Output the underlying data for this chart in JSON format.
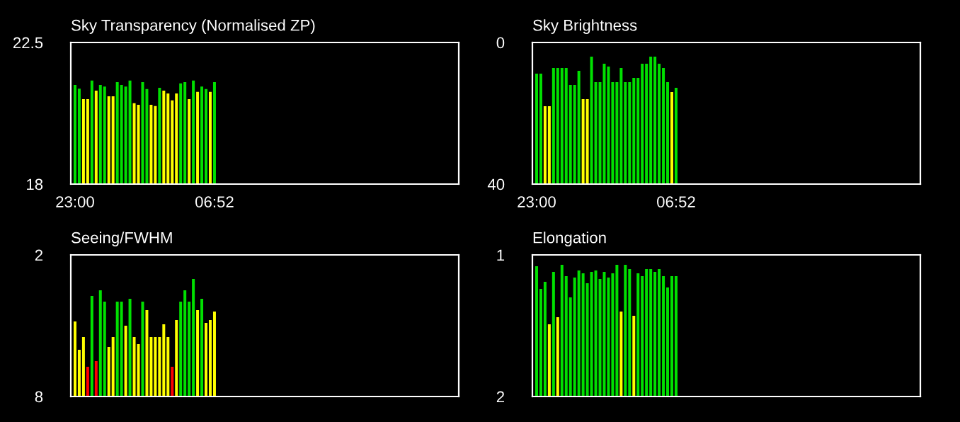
{
  "chart_data": [
    {
      "type": "bar",
      "title": "Sky Transparency (Normalised ZP)",
      "categories": [
        "23:00",
        null,
        null,
        null,
        null,
        null,
        null,
        null,
        null,
        null,
        null,
        null,
        null,
        null,
        null,
        null,
        null,
        null,
        null,
        null,
        null,
        null,
        null,
        null,
        null,
        null,
        null,
        null,
        null,
        null,
        null,
        null,
        null,
        "06:52"
      ],
      "values": [
        21.15,
        21.03,
        20.7,
        20.7,
        21.29,
        20.97,
        21.15,
        21.1,
        20.79,
        20.79,
        21.24,
        21.15,
        21.1,
        21.29,
        20.57,
        20.52,
        21.24,
        21.02,
        20.52,
        20.48,
        21.06,
        20.97,
        20.88,
        20.66,
        20.88,
        21.2,
        21.24,
        20.7,
        21.29,
        20.93,
        21.1,
        21.02,
        20.93,
        21.24
      ],
      "colors": [
        "#00e000",
        "#00e000",
        "#ffff00",
        "#ffff00",
        "#00e000",
        "#ffff00",
        "#00e000",
        "#00e000",
        "#ffff00",
        "#ffff00",
        "#00e000",
        "#00e000",
        "#00e000",
        "#00e000",
        "#ffff00",
        "#ffff00",
        "#00e000",
        "#00e000",
        "#ffff00",
        "#ffff00",
        "#00e000",
        "#ffff00",
        "#ffff00",
        "#ffff00",
        "#ffff00",
        "#00e000",
        "#00e000",
        "#ffff00",
        "#00e000",
        "#ffff00",
        "#00e000",
        "#00e000",
        "#ffff00",
        "#00e000"
      ],
      "ylim": [
        18,
        22.5
      ],
      "yticks": [
        18,
        22.5
      ]
    },
    {
      "type": "bar",
      "title": "Sky Brightness",
      "categories": [
        "23:00",
        null,
        null,
        null,
        null,
        null,
        null,
        null,
        null,
        null,
        null,
        null,
        null,
        null,
        null,
        null,
        null,
        null,
        null,
        null,
        null,
        null,
        null,
        null,
        null,
        null,
        null,
        null,
        null,
        null,
        null,
        null,
        null,
        "06:52"
      ],
      "base": [
        40,
        40,
        40,
        40,
        40,
        40,
        40,
        40,
        40,
        40,
        40,
        40,
        40,
        40,
        40,
        40,
        40,
        40,
        40,
        40,
        40,
        40,
        40,
        40,
        40,
        40,
        40,
        40,
        40,
        40,
        40,
        40,
        40,
        40
      ],
      "values": [
        -31.2,
        -31.2,
        -22,
        -22,
        -32.8,
        -32.8,
        -32.8,
        -32.8,
        -28,
        -28,
        -32,
        -24,
        -24,
        -36,
        -28.8,
        -28.8,
        -34,
        -33.2,
        -28.8,
        -28.8,
        -32.8,
        -28.8,
        -28.8,
        -30,
        -30,
        -34,
        -34,
        -36,
        -36,
        -34,
        -32.8,
        -28.8,
        -26,
        -27.2
      ],
      "colors": [
        "#00e000",
        "#00e000",
        "#ffff00",
        "#ffff00",
        "#00e000",
        "#00e000",
        "#00e000",
        "#00e000",
        "#00e000",
        "#00e000",
        "#00e000",
        "#ffff00",
        "#ffff00",
        "#00e000",
        "#00e000",
        "#00e000",
        "#00e000",
        "#00e000",
        "#00e000",
        "#00e000",
        "#00e000",
        "#00e000",
        "#00e000",
        "#00e000",
        "#00e000",
        "#00e000",
        "#00e000",
        "#00e000",
        "#00e000",
        "#00e000",
        "#00e000",
        "#00e000",
        "#ffff00",
        "#00e000"
      ],
      "ylim": [
        40,
        0
      ],
      "yticks": [
        40,
        0
      ]
    },
    {
      "type": "bar",
      "title": "Seeing/FWHM",
      "categories": [
        null,
        null,
        null,
        null,
        null,
        null,
        null,
        null,
        null,
        null,
        null,
        null,
        null,
        null,
        null,
        null,
        null,
        null,
        null,
        null,
        null,
        null,
        null,
        null,
        null,
        null,
        null,
        null,
        null,
        null,
        null,
        null,
        null,
        null
      ],
      "base": [
        8,
        8,
        8,
        8,
        8,
        8,
        8,
        8,
        8,
        8,
        8,
        8,
        8,
        8,
        8,
        8,
        8,
        8,
        8,
        8,
        8,
        8,
        8,
        8,
        8,
        8,
        8,
        8,
        8,
        8,
        8,
        8,
        8,
        8
      ],
      "values": [
        -3.18,
        -1.98,
        -2.52,
        -1.26,
        -4.26,
        -1.5,
        -4.5,
        -4.02,
        -2.1,
        -2.52,
        -4.02,
        -4.02,
        -3.0,
        -4.14,
        -2.52,
        -2.22,
        -4.02,
        -3.66,
        -2.52,
        -2.52,
        -2.52,
        -3.06,
        -2.52,
        -1.26,
        -3.24,
        -4.02,
        -4.5,
        -4.02,
        -4.98,
        -3.66,
        -4.14,
        -3.12,
        -3.24,
        -3.6
      ],
      "colors": [
        "#ffff00",
        "#ffff00",
        "#ffff00",
        "#ff0000",
        "#00e000",
        "#ff0000",
        "#00e000",
        "#00e000",
        "#ffff00",
        "#ffff00",
        "#00e000",
        "#00e000",
        "#ffff00",
        "#00e000",
        "#ffff00",
        "#ffff00",
        "#00e000",
        "#ffff00",
        "#ffff00",
        "#ffff00",
        "#ffff00",
        "#ffff00",
        "#ffff00",
        "#ff0000",
        "#ffff00",
        "#00e000",
        "#00e000",
        "#00e000",
        "#00e000",
        "#ffff00",
        "#00e000",
        "#ffff00",
        "#ffff00",
        "#ffff00"
      ],
      "ylim": [
        8,
        2
      ],
      "yticks": [
        8,
        2
      ],
      "tick_labels": "y"
    },
    {
      "type": "bar",
      "title": "Elongation",
      "categories": [
        null,
        null,
        null,
        null,
        null,
        null,
        null,
        null,
        null,
        null,
        null,
        null,
        null,
        null,
        null,
        null,
        null,
        null,
        null,
        null,
        null,
        null,
        null,
        null,
        null,
        null,
        null,
        null,
        null,
        null,
        null,
        null,
        null,
        null
      ],
      "base": [
        2,
        2,
        2,
        2,
        2,
        2,
        2,
        2,
        2,
        2,
        2,
        2,
        2,
        2,
        2,
        2,
        2,
        2,
        2,
        2,
        2,
        2,
        2,
        2,
        2,
        2,
        2,
        2,
        2,
        2,
        2,
        2,
        2,
        2
      ],
      "values": [
        -0.92,
        -0.76,
        -0.81,
        -0.51,
        -0.88,
        -0.56,
        -0.93,
        -0.85,
        -0.7,
        -0.84,
        -0.89,
        -0.87,
        -0.8,
        -0.88,
        -0.89,
        -0.83,
        -0.88,
        -0.84,
        -0.87,
        -0.93,
        -0.6,
        -0.93,
        -0.9,
        -0.57,
        -0.87,
        -0.85,
        -0.9,
        -0.9,
        -0.88,
        -0.9,
        -0.85,
        -0.77,
        -0.85,
        -0.85
      ],
      "colors": [
        "#00e000",
        "#00e000",
        "#00e000",
        "#ffff00",
        "#00e000",
        "#ffff00",
        "#00e000",
        "#00e000",
        "#00e000",
        "#00e000",
        "#00e000",
        "#00e000",
        "#00e000",
        "#00e000",
        "#00e000",
        "#00e000",
        "#00e000",
        "#00e000",
        "#00e000",
        "#00e000",
        "#ffff00",
        "#00e000",
        "#00e000",
        "#ffff00",
        "#00e000",
        "#00e000",
        "#00e000",
        "#00e000",
        "#00e000",
        "#00e000",
        "#00e000",
        "#00e000",
        "#00e000",
        "#00e000"
      ],
      "ylim": [
        2,
        1
      ],
      "yticks": [
        2,
        1
      ],
      "tick_labels": "y"
    }
  ]
}
